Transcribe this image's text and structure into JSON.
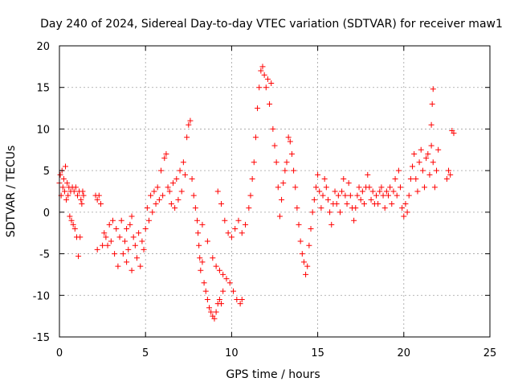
{
  "chart_data": {
    "type": "scatter",
    "title": "Day 240 of 2024, Sidereal Day-to-day VTEC variation (SDTVAR) for receiver maw1",
    "xlabel": "GPS time / hours",
    "ylabel": "SDTVAR / TECUs",
    "xlim": [
      0,
      25
    ],
    "ylim": [
      -15,
      20
    ],
    "xticks": [
      "0",
      "5",
      "10",
      "15",
      "20",
      "25"
    ],
    "yticks": [
      "-15",
      "-10",
      "-5",
      "0",
      "5",
      "10",
      "15",
      "20"
    ],
    "grid": true,
    "marker": "+",
    "color": "#ff0000",
    "series": [
      {
        "name": "SDTVAR",
        "points": [
          [
            0.0,
            3.5
          ],
          [
            0.05,
            4.5
          ],
          [
            0.1,
            2.0
          ],
          [
            0.15,
            5.0
          ],
          [
            0.2,
            3.0
          ],
          [
            0.25,
            4.0
          ],
          [
            0.3,
            2.5
          ],
          [
            0.35,
            5.5
          ],
          [
            0.4,
            1.5
          ],
          [
            0.45,
            3.5
          ],
          [
            0.5,
            2.0
          ],
          [
            0.55,
            3.0
          ],
          [
            0.6,
            -0.5
          ],
          [
            0.65,
            2.5
          ],
          [
            0.7,
            -1.0
          ],
          [
            0.75,
            3.0
          ],
          [
            0.8,
            -1.5
          ],
          [
            0.85,
            2.5
          ],
          [
            0.9,
            -2.0
          ],
          [
            0.95,
            3.0
          ],
          [
            1.0,
            -3.0
          ],
          [
            1.05,
            2.0
          ],
          [
            1.1,
            -5.3
          ],
          [
            1.15,
            2.5
          ],
          [
            1.2,
            -3.0
          ],
          [
            1.25,
            1.5
          ],
          [
            1.3,
            1.0
          ],
          [
            1.35,
            2.5
          ],
          [
            1.4,
            2.0
          ],
          [
            2.1,
            2.0
          ],
          [
            2.2,
            1.5
          ],
          [
            2.3,
            2.0
          ],
          [
            2.4,
            1.0
          ],
          [
            2.2,
            -4.5
          ],
          [
            2.5,
            -4.0
          ],
          [
            2.6,
            -2.5
          ],
          [
            2.7,
            -3.0
          ],
          [
            2.8,
            -4.0
          ],
          [
            2.9,
            -1.5
          ],
          [
            3.0,
            -3.5
          ],
          [
            3.1,
            -1.0
          ],
          [
            3.2,
            -5.0
          ],
          [
            3.3,
            -2.0
          ],
          [
            3.4,
            -6.5
          ],
          [
            3.5,
            -3.0
          ],
          [
            3.6,
            -1.0
          ],
          [
            3.7,
            -5.0
          ],
          [
            3.8,
            -3.5
          ],
          [
            3.9,
            -6.0
          ],
          [
            4.0,
            -4.5
          ],
          [
            4.1,
            -1.5
          ],
          [
            4.2,
            -7.0
          ],
          [
            4.3,
            -3.0
          ],
          [
            4.4,
            -4.0
          ],
          [
            4.5,
            -5.5
          ],
          [
            4.6,
            -2.5
          ],
          [
            4.7,
            -6.5
          ],
          [
            4.8,
            -3.5
          ],
          [
            4.9,
            -4.5
          ],
          [
            5.0,
            -2.0
          ],
          [
            4.2,
            -0.5
          ],
          [
            3.9,
            -2.0
          ],
          [
            5.1,
            0.5
          ],
          [
            5.2,
            -1.0
          ],
          [
            5.3,
            2.0
          ],
          [
            5.4,
            0.0
          ],
          [
            5.5,
            2.5
          ],
          [
            5.6,
            1.0
          ],
          [
            5.7,
            3.0
          ],
          [
            5.8,
            1.5
          ],
          [
            5.9,
            5.0
          ],
          [
            6.0,
            2.0
          ],
          [
            6.1,
            6.5
          ],
          [
            6.2,
            7.0
          ],
          [
            6.3,
            3.0
          ],
          [
            6.4,
            2.5
          ],
          [
            6.5,
            1.0
          ],
          [
            6.6,
            3.5
          ],
          [
            6.7,
            0.5
          ],
          [
            6.8,
            4.0
          ],
          [
            6.9,
            1.5
          ],
          [
            7.0,
            5.0
          ],
          [
            7.1,
            2.5
          ],
          [
            7.2,
            6.0
          ],
          [
            7.3,
            4.5
          ],
          [
            7.4,
            9.0
          ],
          [
            7.5,
            10.5
          ],
          [
            7.6,
            11.0
          ],
          [
            7.7,
            4.0
          ],
          [
            7.8,
            2.0
          ],
          [
            7.9,
            0.5
          ],
          [
            8.0,
            -1.0
          ],
          [
            8.05,
            -2.5
          ],
          [
            8.1,
            -4.0
          ],
          [
            8.15,
            -5.5
          ],
          [
            8.2,
            -7.0
          ],
          [
            8.3,
            -6.0
          ],
          [
            8.4,
            -8.5
          ],
          [
            8.5,
            -9.5
          ],
          [
            8.6,
            -10.5
          ],
          [
            8.7,
            -11.5
          ],
          [
            8.8,
            -12.0
          ],
          [
            8.9,
            -12.5
          ],
          [
            9.0,
            -12.8
          ],
          [
            9.1,
            -12.0
          ],
          [
            9.2,
            -11.0
          ],
          [
            9.3,
            -10.5
          ],
          [
            9.4,
            -11.0
          ],
          [
            9.5,
            -9.5
          ],
          [
            8.3,
            -1.5
          ],
          [
            8.6,
            -3.5
          ],
          [
            8.9,
            -5.5
          ],
          [
            9.1,
            -6.5
          ],
          [
            9.3,
            -7.0
          ],
          [
            9.5,
            -7.5
          ],
          [
            9.7,
            -8.0
          ],
          [
            9.9,
            -8.5
          ],
          [
            10.1,
            -9.5
          ],
          [
            10.3,
            -10.5
          ],
          [
            10.5,
            -11.0
          ],
          [
            10.6,
            -10.5
          ],
          [
            9.2,
            2.5
          ],
          [
            9.4,
            1.0
          ],
          [
            9.6,
            -1.0
          ],
          [
            9.8,
            -2.5
          ],
          [
            10.0,
            -3.0
          ],
          [
            10.2,
            -2.0
          ],
          [
            10.4,
            -1.0
          ],
          [
            10.6,
            -2.5
          ],
          [
            10.8,
            -1.5
          ],
          [
            11.0,
            0.5
          ],
          [
            11.1,
            2.0
          ],
          [
            11.2,
            4.0
          ],
          [
            11.3,
            6.0
          ],
          [
            11.4,
            9.0
          ],
          [
            11.5,
            12.5
          ],
          [
            11.6,
            15.0
          ],
          [
            11.7,
            17.0
          ],
          [
            11.8,
            17.5
          ],
          [
            11.9,
            16.5
          ],
          [
            12.0,
            15.0
          ],
          [
            12.1,
            16.0
          ],
          [
            12.2,
            13.0
          ],
          [
            12.3,
            15.5
          ],
          [
            12.4,
            10.0
          ],
          [
            12.5,
            8.0
          ],
          [
            12.6,
            6.0
          ],
          [
            12.7,
            3.0
          ],
          [
            12.8,
            -0.5
          ],
          [
            12.9,
            1.5
          ],
          [
            13.0,
            3.5
          ],
          [
            13.1,
            5.0
          ],
          [
            13.2,
            6.0
          ],
          [
            13.3,
            9.0
          ],
          [
            13.4,
            8.5
          ],
          [
            13.5,
            7.0
          ],
          [
            13.6,
            5.0
          ],
          [
            13.7,
            3.0
          ],
          [
            13.8,
            0.5
          ],
          [
            13.9,
            -1.5
          ],
          [
            14.0,
            -3.5
          ],
          [
            14.1,
            -5.0
          ],
          [
            14.2,
            -6.0
          ],
          [
            14.3,
            -7.5
          ],
          [
            14.4,
            -6.5
          ],
          [
            14.5,
            -4.0
          ],
          [
            14.6,
            -2.0
          ],
          [
            14.7,
            0.0
          ],
          [
            14.8,
            1.5
          ],
          [
            14.9,
            3.0
          ],
          [
            15.0,
            4.5
          ],
          [
            15.1,
            2.5
          ],
          [
            15.2,
            0.5
          ],
          [
            15.3,
            2.0
          ],
          [
            15.4,
            4.0
          ],
          [
            15.5,
            3.0
          ],
          [
            15.6,
            1.5
          ],
          [
            15.7,
            0.0
          ],
          [
            15.8,
            -1.5
          ],
          [
            15.9,
            1.0
          ],
          [
            16.0,
            2.5
          ],
          [
            16.1,
            1.0
          ],
          [
            16.2,
            2.0
          ],
          [
            16.3,
            0.0
          ],
          [
            16.4,
            2.5
          ],
          [
            16.5,
            4.0
          ],
          [
            16.6,
            2.0
          ],
          [
            16.7,
            1.0
          ],
          [
            16.8,
            3.5
          ],
          [
            16.9,
            2.0
          ],
          [
            17.0,
            0.5
          ],
          [
            17.1,
            -1.0
          ],
          [
            17.2,
            0.5
          ],
          [
            17.3,
            2.0
          ],
          [
            17.4,
            3.0
          ],
          [
            17.5,
            1.5
          ],
          [
            17.6,
            2.5
          ],
          [
            17.7,
            1.0
          ],
          [
            17.8,
            3.0
          ],
          [
            17.9,
            4.5
          ],
          [
            18.0,
            3.0
          ],
          [
            18.1,
            1.5
          ],
          [
            18.2,
            2.5
          ],
          [
            18.3,
            1.0
          ],
          [
            18.4,
            2.0
          ],
          [
            18.5,
            1.0
          ],
          [
            18.6,
            2.5
          ],
          [
            18.7,
            3.0
          ],
          [
            18.8,
            2.0
          ],
          [
            18.9,
            0.5
          ],
          [
            19.0,
            2.5
          ],
          [
            19.1,
            2.0
          ],
          [
            19.2,
            3.0
          ],
          [
            19.3,
            1.0
          ],
          [
            19.4,
            2.5
          ],
          [
            19.5,
            4.0
          ],
          [
            19.6,
            2.0
          ],
          [
            19.7,
            5.0
          ],
          [
            19.8,
            3.0
          ],
          [
            19.9,
            0.5
          ],
          [
            20.0,
            -0.5
          ],
          [
            20.1,
            1.0
          ],
          [
            20.2,
            0.0
          ],
          [
            20.3,
            2.0
          ],
          [
            20.4,
            4.0
          ],
          [
            20.5,
            5.5
          ],
          [
            20.6,
            7.0
          ],
          [
            20.7,
            4.0
          ],
          [
            20.8,
            2.5
          ],
          [
            20.9,
            6.0
          ],
          [
            21.0,
            7.5
          ],
          [
            21.1,
            5.0
          ],
          [
            21.2,
            3.0
          ],
          [
            21.3,
            6.5
          ],
          [
            21.4,
            7.0
          ],
          [
            21.5,
            4.5
          ],
          [
            21.6,
            8.0
          ],
          [
            21.7,
            6.0
          ],
          [
            21.8,
            3.0
          ],
          [
            21.9,
            5.0
          ],
          [
            21.6,
            10.5
          ],
          [
            21.65,
            13.0
          ],
          [
            21.7,
            14.8
          ],
          [
            22.0,
            7.5
          ],
          [
            22.5,
            4.0
          ],
          [
            22.6,
            5.0
          ],
          [
            22.7,
            4.5
          ],
          [
            22.8,
            9.8
          ],
          [
            22.9,
            9.5
          ]
        ]
      }
    ]
  }
}
